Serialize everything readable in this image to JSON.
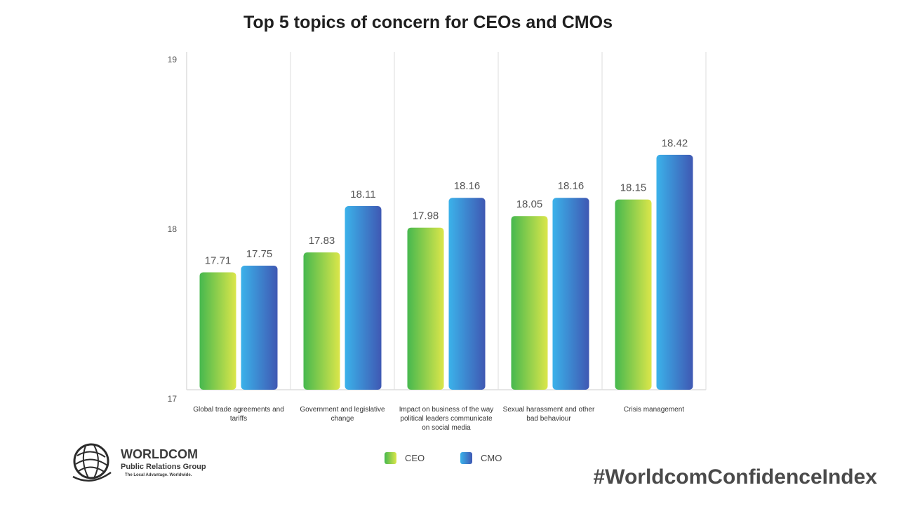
{
  "title": "Top 5 topics of concern for CEOs and CMOs",
  "logo": {
    "name": "WORLDCOM",
    "sub": "Public Relations Group",
    "tagline": "The Local Advantage. Worldwide."
  },
  "hashtag": "#WorldcomConfidenceIndex",
  "colors": {
    "ceo_top": "#dbe64a",
    "ceo_bottom": "#46b84e",
    "cmo_left": "#3bb2ea",
    "cmo_right": "#3f58b3",
    "grid": "#dddddd"
  },
  "chart_data": {
    "type": "bar",
    "title": "Top 5 topics of concern for CEOs and CMOs",
    "categories": [
      "Global trade agreements and tariffs",
      "Government and legislative change",
      "Impact on business of the way political leaders communicate on social media",
      "Sexual harassment and other bad behaviour",
      "Crisis management"
    ],
    "series": [
      {
        "name": "CEO",
        "values": [
          17.71,
          17.83,
          17.98,
          18.05,
          18.15
        ]
      },
      {
        "name": "CMO",
        "values": [
          17.75,
          18.11,
          18.16,
          18.16,
          18.42
        ]
      }
    ],
    "yticks": [
      "19",
      "18",
      "17"
    ],
    "ylim": [
      17,
      19
    ],
    "legend": "bottom-center",
    "grid": "vertical separators"
  }
}
